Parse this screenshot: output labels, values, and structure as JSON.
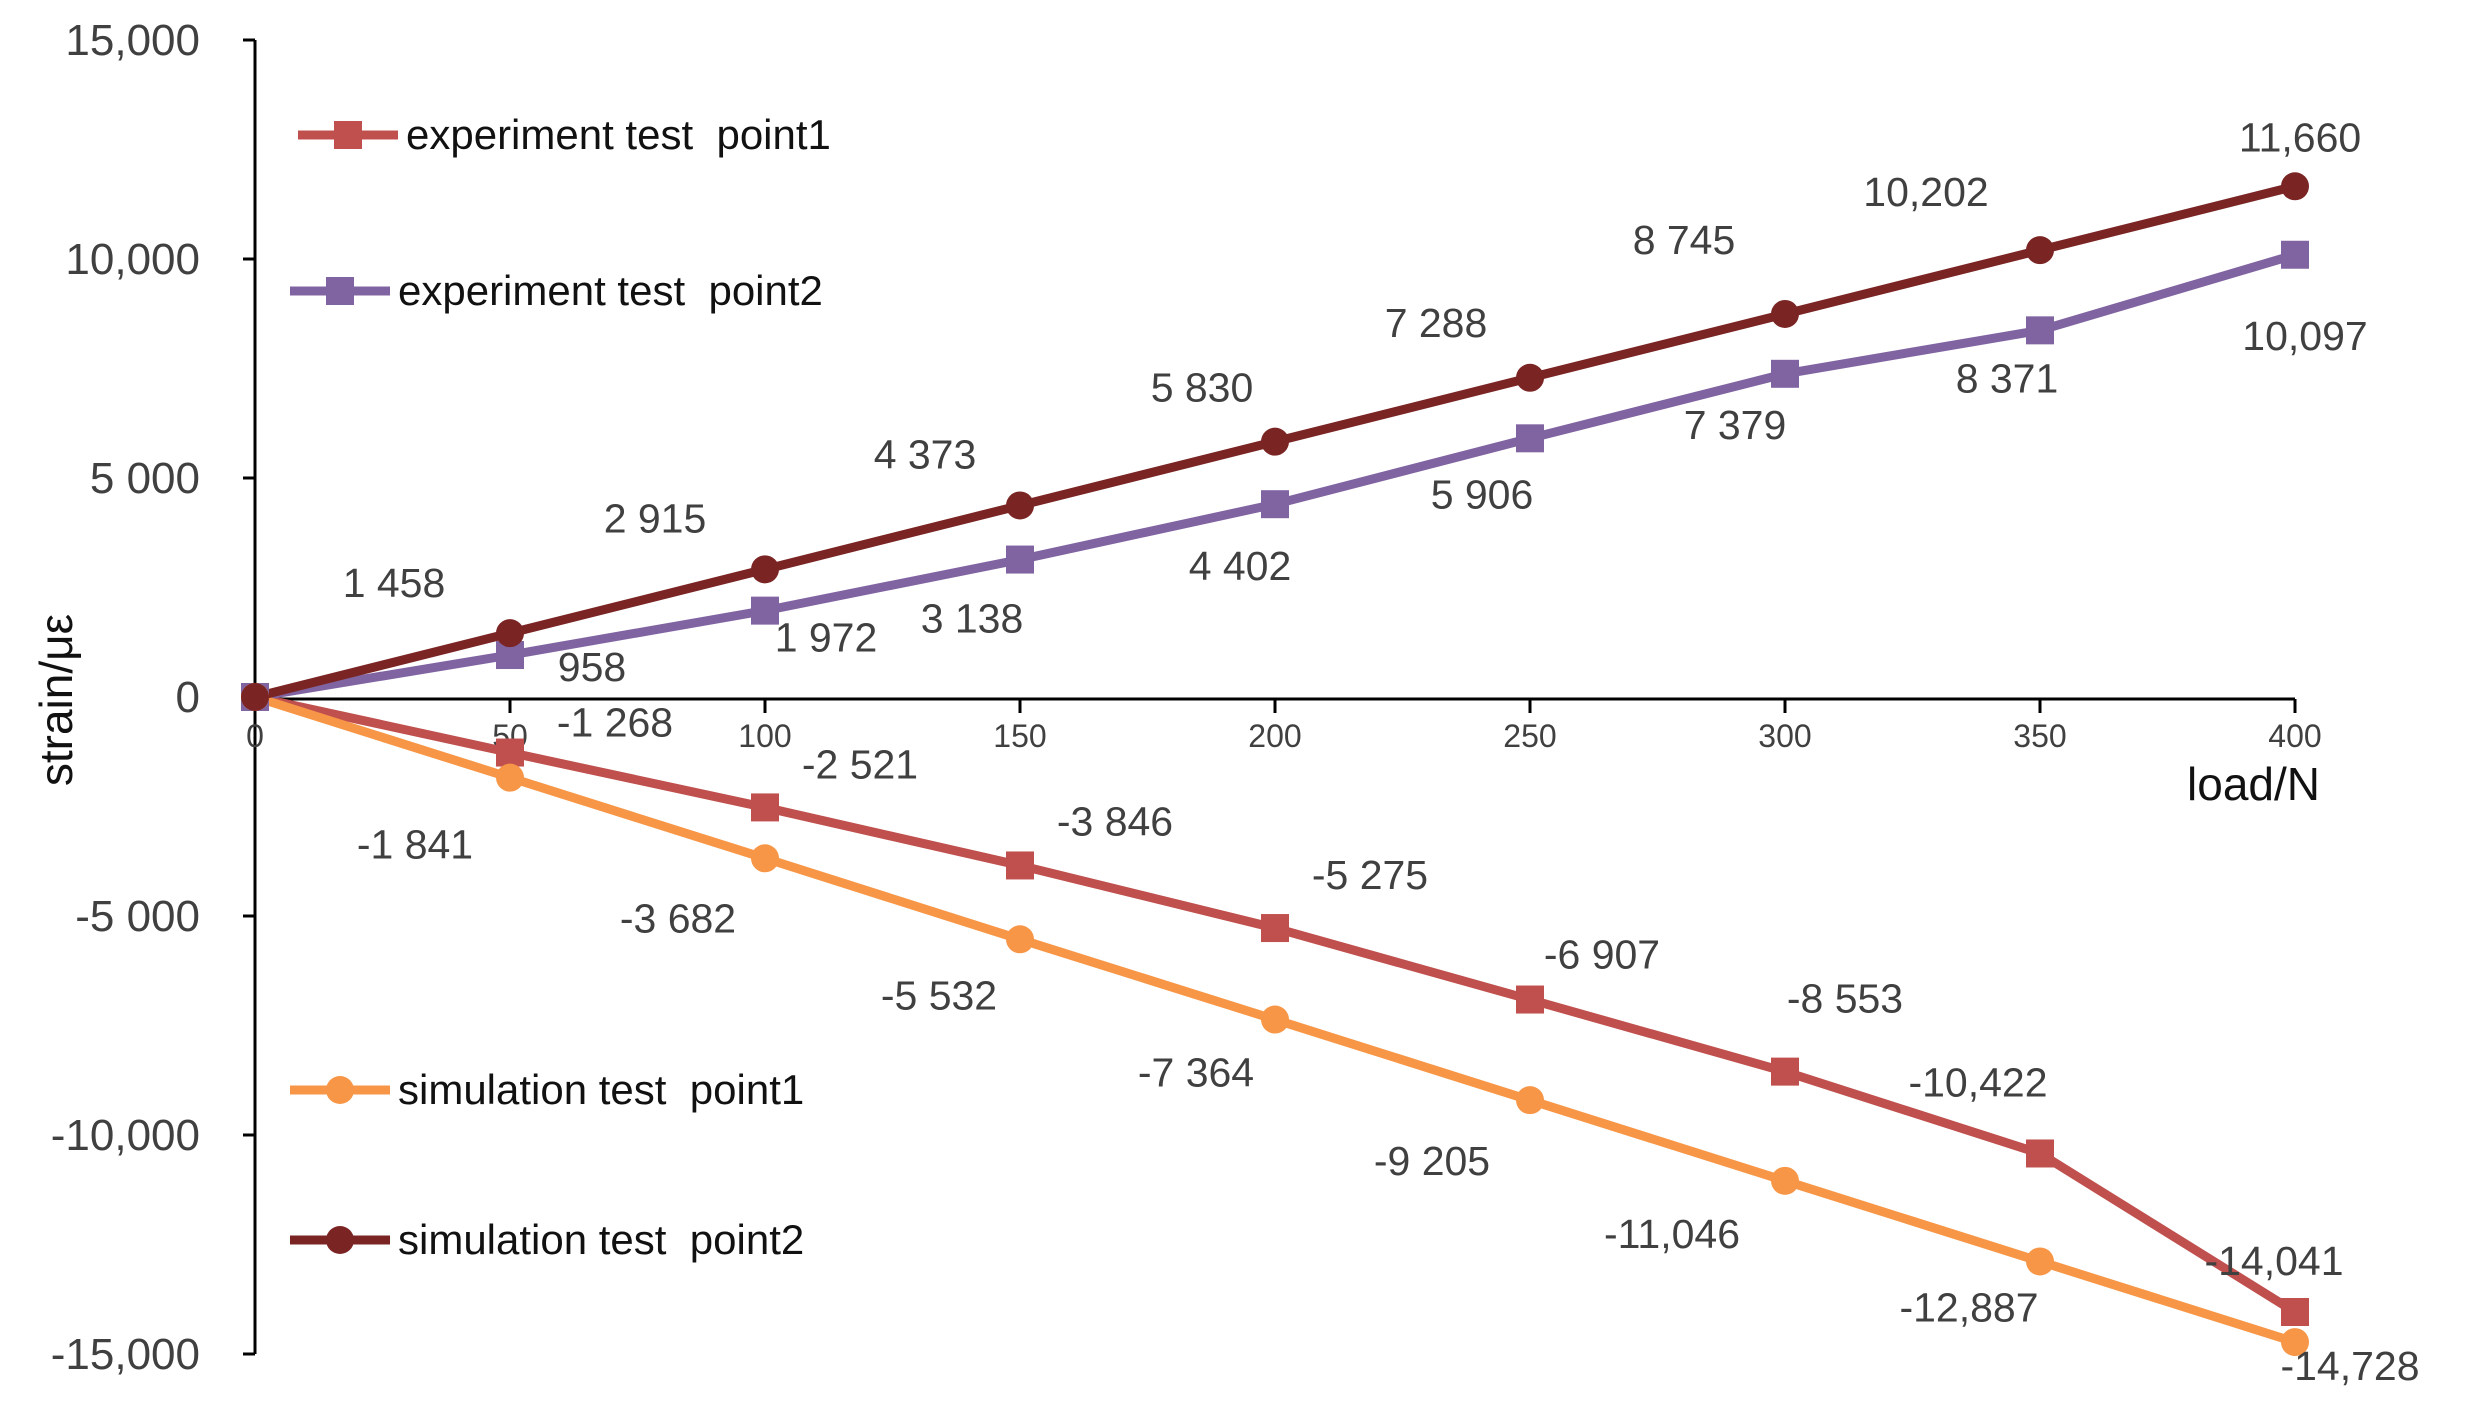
{
  "chart_data": {
    "type": "line",
    "title": "",
    "xlabel": "load/N",
    "ylabel": "strain/με",
    "xlim": [
      0,
      400
    ],
    "ylim": [
      -15000,
      15000
    ],
    "x": [
      0,
      50,
      100,
      150,
      200,
      250,
      300,
      350,
      400
    ],
    "x_tick_labels": [
      "0",
      "50",
      "100",
      "150",
      "200",
      "250",
      "300",
      "350",
      "400"
    ],
    "y_ticks": [
      15000,
      10000,
      5000,
      0,
      -5000,
      -10000,
      -15000
    ],
    "y_tick_labels": [
      "15,000",
      "10,000",
      "5 000",
      "0",
      "-5 000",
      "-10,000",
      "-15,000"
    ],
    "grid": false,
    "legend_position": "left",
    "series": [
      {
        "name": "experiment test  point1",
        "color": "#C0504D",
        "marker": "square",
        "values": [
          0,
          -1268,
          -2521,
          -3846,
          -5275,
          -6907,
          -8553,
          -10422,
          -14041
        ],
        "labels": [
          "",
          "-1 268",
          "-2 521",
          "-3 846",
          "-5 275",
          "-6 907",
          "-8 553",
          "-10,422",
          "-14,041"
        ]
      },
      {
        "name": "experiment test  point2",
        "color": "#8064A2",
        "marker": "square",
        "values": [
          0,
          958,
          1972,
          3138,
          4402,
          5906,
          7379,
          8371,
          10097
        ],
        "labels": [
          "",
          "958",
          "1 972",
          "3 138",
          "4 402",
          "5 906",
          "7 379",
          "8 371",
          "10,097"
        ]
      },
      {
        "name": "simulation test  point1",
        "color": "#F79646",
        "marker": "circle",
        "values": [
          0,
          -1841,
          -3682,
          -5532,
          -7364,
          -9205,
          -11046,
          -12887,
          -14728
        ],
        "labels": [
          "",
          "-1 841",
          "-3 682",
          "-5 532",
          "-7 364",
          "-9 205",
          "-11,046",
          "-12,887",
          "-14,728"
        ]
      },
      {
        "name": "simulation test  point2",
        "color": "#7B2424",
        "marker": "circle",
        "values": [
          0,
          1458,
          2915,
          4373,
          5830,
          7288,
          8745,
          10202,
          11660
        ],
        "labels": [
          "",
          "1 458",
          "2 915",
          "4 373",
          "5 830",
          "7 288",
          "8 745",
          "10,202",
          "11,660"
        ]
      }
    ]
  }
}
